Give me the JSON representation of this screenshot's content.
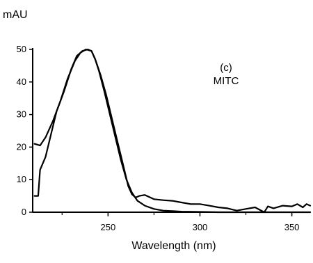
{
  "chart_data": {
    "type": "line",
    "xlabel": "Wavelength (nm)",
    "ylabel": "mAU",
    "xlim": [
      209,
      360
    ],
    "ylim": [
      0,
      50
    ],
    "x_ticks": [
      250,
      300,
      350
    ],
    "x_tick_labels": [
      "250",
      "300",
      "350"
    ],
    "y_ticks": [
      0,
      10,
      20,
      30,
      40,
      50
    ],
    "y_tick_labels": [
      "0",
      "10",
      "20",
      "30",
      "40",
      "50"
    ],
    "annotations": [
      "(c)",
      "MITC"
    ],
    "grid": false,
    "legend": "none",
    "series": [
      {
        "x": [
          210,
          213,
          216,
          220,
          224,
          228,
          232,
          235,
          238,
          241,
          243,
          245,
          248,
          251,
          254,
          257,
          260,
          263,
          266,
          270,
          275,
          280,
          290,
          300,
          310,
          320,
          330,
          340,
          350,
          360
        ],
        "y": [
          21,
          20.5,
          23,
          28,
          34,
          41,
          46.5,
          49,
          50,
          49.5,
          47,
          43.5,
          37,
          30,
          23,
          16,
          10,
          6,
          3.5,
          2,
          1,
          0.5,
          0.2,
          0.1,
          0,
          0,
          0,
          0,
          0,
          0
        ]
      },
      {
        "x": [
          210,
          212,
          213,
          216,
          219,
          222,
          226,
          230,
          233,
          236,
          239,
          241,
          243,
          246,
          249,
          252,
          255,
          258,
          261,
          263,
          265,
          267,
          270,
          275,
          280,
          285,
          290,
          295,
          300,
          305,
          310,
          315,
          320,
          325,
          330,
          335,
          337,
          340,
          345,
          350,
          353,
          356,
          358,
          360
        ],
        "y": [
          5,
          5,
          13,
          17,
          24,
          31,
          37,
          44,
          48,
          49.5,
          50,
          49.5,
          47,
          42,
          36,
          29,
          22,
          15,
          8,
          5.5,
          4.5,
          5,
          5.3,
          4,
          3.7,
          3.5,
          3,
          2.5,
          2.5,
          2,
          1.5,
          1.2,
          0.5,
          1,
          1.5,
          0,
          1.8,
          1.2,
          2,
          1.8,
          2.5,
          1.5,
          2.5,
          2
        ]
      }
    ]
  }
}
